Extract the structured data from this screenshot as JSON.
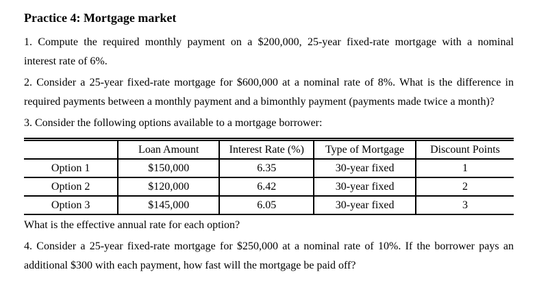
{
  "document": {
    "title": "Practice 4: Mortgage market",
    "lines": {
      "q1_line1": "1. Compute the required monthly payment on a $200,000, 25-year fixed-rate mortgage with a nominal",
      "q1_line2": "interest rate of 6%.",
      "q2_line1": "2. Consider a 25-year fixed-rate mortgage for $600,000 at a nominal rate of 8%. What is the difference in",
      "q2_line2": "required payments between a monthly payment and a bimonthly payment (payments made twice a month)?",
      "q3_intro": "3. Consider the following options available to a mortgage borrower:",
      "q3_followup": "What is the effective annual rate for each option?",
      "q4_line1": "4. Consider a 25-year fixed-rate mortgage for $250,000 at a nominal rate of 10%. If the borrower pays an",
      "q4_line2": "additional $300 with each payment, how fast will the mortgage be paid off?"
    }
  },
  "table": {
    "headers": [
      "",
      "Loan Amount",
      "Interest Rate (%)",
      "Type of Mortgage",
      "Discount Points"
    ],
    "rows": [
      [
        "Option 1",
        "$150,000",
        "6.35",
        "30-year fixed",
        "1"
      ],
      [
        "Option 2",
        "$120,000",
        "6.42",
        "30-year fixed",
        "2"
      ],
      [
        "Option 3",
        "$145,000",
        "6.05",
        "30-year fixed",
        "3"
      ]
    ]
  },
  "colors": {
    "text": "#000000",
    "background": "#ffffff",
    "border": "#000000"
  }
}
